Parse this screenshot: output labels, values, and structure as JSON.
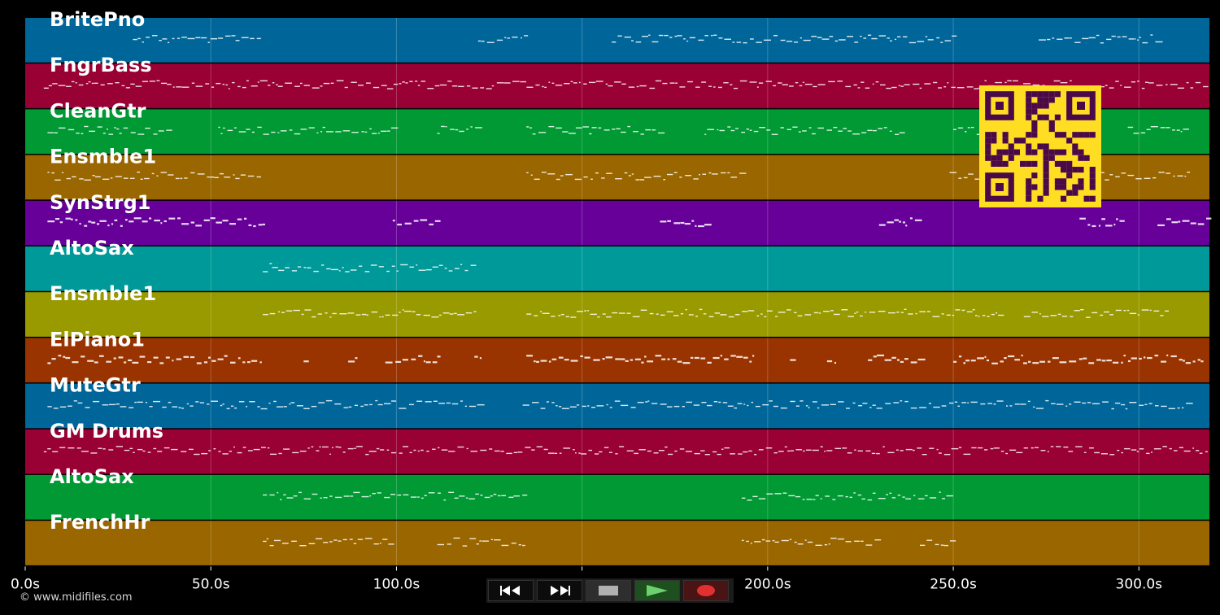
{
  "tracks": [
    {
      "name": "BritePno",
      "color": "#006699"
    },
    {
      "name": "FngrBass",
      "color": "#990033"
    },
    {
      "name": "CleanGtr",
      "color": "#009933"
    },
    {
      "name": "Ensmble1",
      "color": "#996600"
    },
    {
      "name": "SynStrg1",
      "color": "#660099"
    },
    {
      "name": "AltoSax",
      "color": "#009999"
    },
    {
      "name": "Ensmble1",
      "color": "#999900"
    },
    {
      "name": "ElPiano1",
      "color": "#993300"
    },
    {
      "name": "MuteGtr",
      "color": "#006699"
    },
    {
      "name": "GM Drums",
      "color": "#990033"
    },
    {
      "name": "AltoSax",
      "color": "#009933"
    },
    {
      "name": "FrenchHr",
      "color": "#996600"
    }
  ],
  "timeline": {
    "tick_labels": [
      "0.0s",
      "50.0s",
      "100.0s",
      "150.0",
      "200.0s",
      "250.0s",
      "300.0s"
    ],
    "tick_values": [
      0,
      50,
      100,
      150,
      200,
      250,
      300
    ],
    "max_seconds": 319
  },
  "transport": {
    "buttons": [
      "rewind-icon",
      "fast-forward-icon",
      "stop-icon",
      "play-icon",
      "record-icon"
    ]
  },
  "overlay": {
    "qr_color": "#ffdd22",
    "qr_dark": "#4a0a4a"
  },
  "footer": {
    "copyright": "© www.midifiles.com"
  }
}
